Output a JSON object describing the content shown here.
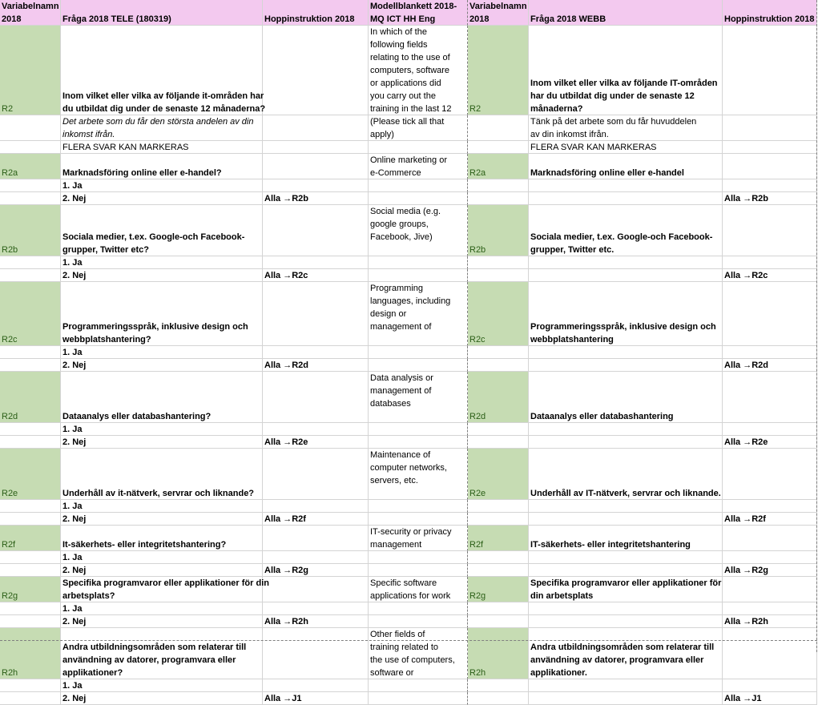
{
  "headers": {
    "var2018": [
      "Variabelnamn",
      "2018"
    ],
    "fraga_tele": "Fråga 2018 TELE (180319)",
    "hopp": "Hoppinstruktion 2018",
    "modell": [
      "Modellblankett 2018-",
      "MQ ICT HH Eng"
    ],
    "var2018b": [
      "Variabelnamn",
      "2018"
    ],
    "fraga_webb": "Fråga 2018 WEBB",
    "hopp2": "Hoppinstruktion 2018"
  },
  "r2": {
    "var": "R2",
    "tele_q": [
      "Inom vilket eller vilka av följande it-områden har",
      "du utbildat dig under de senaste 12 månaderna?"
    ],
    "eng": [
      "In which of the",
      "following fields",
      "relating to the use of",
      "computers, software",
      "or applications did",
      "you carry out the",
      "training in the last 12"
    ],
    "eng_cont": [
      "(Please tick all that",
      "apply)"
    ],
    "webb_q": [
      "Inom vilket eller vilka av följande IT-områden",
      "har du utbildat dig under de senaste 12",
      "månaderna?"
    ],
    "tele_note": [
      "Det arbete som du får den största andelen av din",
      "inkomst ifrån."
    ],
    "webb_note": [
      "Tänk på det arbete som du får huvuddelen",
      "av din inkomst ifrån."
    ],
    "flera_tele": "FLERA SVAR KAN MARKERAS",
    "flera_webb": "FLERA SVAR KAN MARKERAS"
  },
  "blocks": [
    {
      "var": "R2a",
      "tele": [
        "Marknadsföring online eller e-handel?"
      ],
      "eng": [
        "Online marketing or",
        "e-Commerce"
      ],
      "webb": [
        "Marknadsföring online eller e-handel"
      ],
      "ja": "1. Ja",
      "nej": "2. Nej",
      "jump": "Alla →R2b"
    },
    {
      "var": "R2b",
      "tele": [
        "Sociala medier, t.ex. Google-och Facebook-",
        "grupper, Twitter etc?"
      ],
      "eng": [
        "Social media (e.g.",
        "google groups,",
        "Facebook, Jive)"
      ],
      "webb": [
        "Sociala medier, t.ex. Google-och Facebook-",
        "grupper, Twitter etc."
      ],
      "ja": "1. Ja",
      "nej": "2. Nej",
      "jump": "Alla →R2c"
    },
    {
      "var": "R2c",
      "tele": [
        "Programmeringsspråk, inklusive design och",
        "webbplatshantering?"
      ],
      "eng": [
        "Programming",
        "languages, including",
        "design or",
        "management of"
      ],
      "webb": [
        "Programmeringsspråk, inklusive design och",
        "webbplatshantering"
      ],
      "ja": "1. Ja",
      "nej": "2. Nej",
      "jump": "Alla →R2d"
    },
    {
      "var": "R2d",
      "tele": [
        "Dataanalys eller databashantering?"
      ],
      "eng": [
        "Data analysis or",
        "management of",
        "databases"
      ],
      "webb": [
        "Dataanalys eller databashantering"
      ],
      "ja": "1. Ja",
      "nej": "2. Nej",
      "jump": "Alla →R2e"
    },
    {
      "var": "R2e",
      "tele": [
        "Underhåll av it-nätverk, servrar och liknande?"
      ],
      "eng": [
        "Maintenance of",
        "computer networks,",
        "servers, etc."
      ],
      "webb": [
        "Underhåll av IT-nätverk, servrar och liknande."
      ],
      "ja": "1. Ja",
      "nej": "2. Nej",
      "jump": "Alla →R2f"
    },
    {
      "var": "R2f",
      "tele": [
        "It-säkerhets- eller integritetshantering?"
      ],
      "eng": [
        "IT-security or privacy",
        "management"
      ],
      "webb": [
        "IT-säkerhets- eller integritetshantering"
      ],
      "ja": "1. Ja",
      "nej": "2. Nej",
      "jump": "Alla →R2g"
    },
    {
      "var": "R2g",
      "tele": [
        "Specifika programvaror eller applikationer för din",
        "arbetsplats?"
      ],
      "eng": [
        "Specific software",
        "applications for work"
      ],
      "webb": [
        "Specifika programvaror eller applikationer för",
        "din arbetsplats"
      ],
      "ja": "1. Ja",
      "nej": "2. Nej",
      "jump": "Alla →R2h"
    },
    {
      "var": "R2h",
      "tele": [
        "Andra utbildningsområden som relaterar till",
        "användning av datorer, programvara eller",
        "applikationer?"
      ],
      "eng": [
        "Other fields of",
        "training related to",
        "the use of computers,",
        "software or"
      ],
      "webb": [
        "Andra utbildningsområden som relaterar till",
        "användning av datorer, programvara eller",
        "applikationer."
      ],
      "ja": "1. Ja",
      "nej": "2. Nej",
      "jump": "Alla →J1"
    }
  ]
}
